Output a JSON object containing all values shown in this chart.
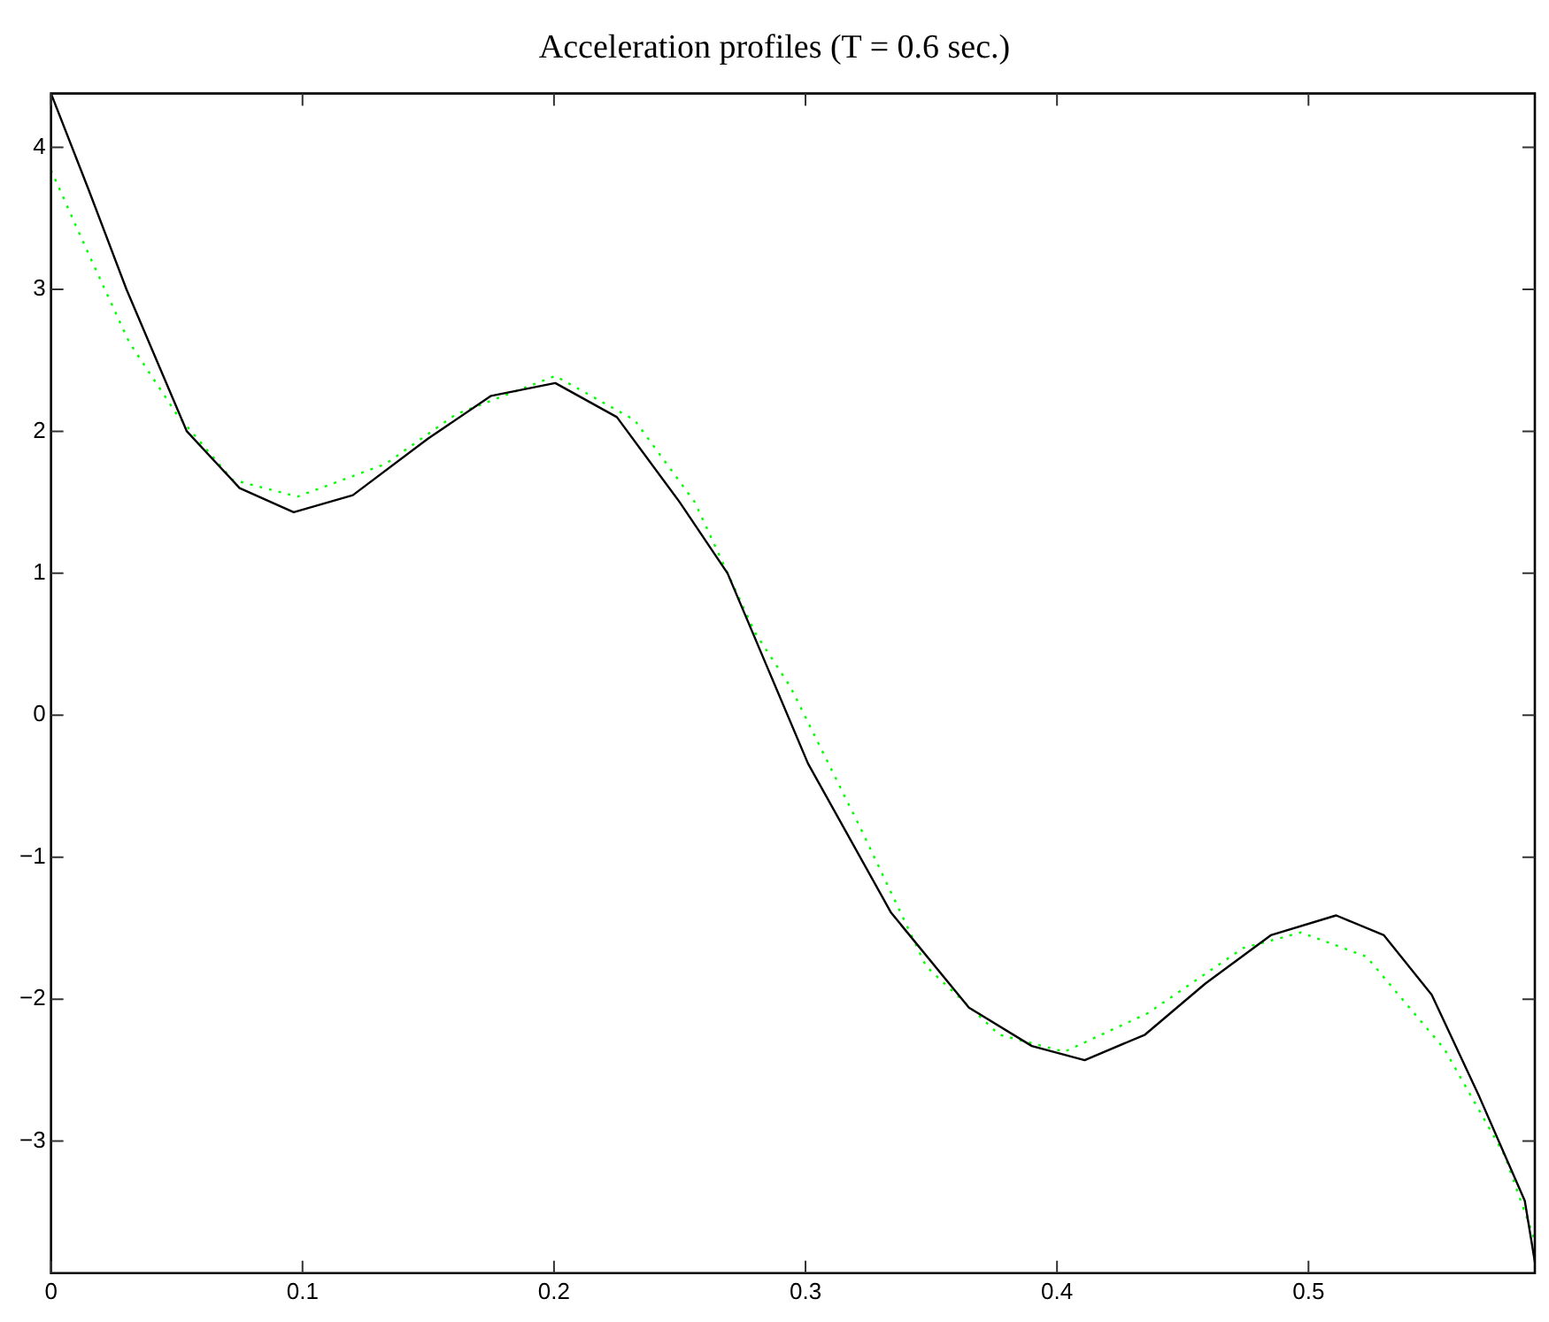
{
  "chart_data": {
    "type": "line",
    "title": "Acceleration profiles (T = 0.6 sec.)",
    "xlim": [
      0,
      0.59
    ],
    "ylim": [
      -3.93,
      4.38
    ],
    "xticks": [
      0,
      0.1,
      0.2,
      0.3,
      0.4,
      0.5
    ],
    "yticks": [
      -3,
      -2,
      -1,
      0,
      1,
      2,
      3,
      4
    ],
    "series": [
      {
        "color": "#000000",
        "line_style": "solid",
        "x": [
          0,
          0.015,
          0.03,
          0.054,
          0.075,
          0.0965,
          0.12,
          0.15,
          0.175,
          0.2005,
          0.225,
          0.25,
          0.269,
          0.285,
          0.301,
          0.334,
          0.365,
          0.39,
          0.411,
          0.435,
          0.459,
          0.485,
          0.511,
          0.53,
          0.549,
          0.568,
          0.586,
          0.59
        ],
        "values": [
          4.38,
          3.7,
          3.0,
          2.0,
          1.6,
          1.43,
          1.55,
          1.95,
          2.25,
          2.34,
          2.1,
          1.5,
          1.0,
          0.33,
          -0.34,
          -1.39,
          -2.06,
          -2.33,
          -2.43,
          -2.25,
          -1.89,
          -1.55,
          -1.41,
          -1.55,
          -1.97,
          -2.69,
          -3.42,
          -3.85
        ]
      },
      {
        "color": "#00ff00",
        "line_style": "dotted",
        "x": [
          0,
          0.0149,
          0.031,
          0.05,
          0.072,
          0.098,
          0.133,
          0.161,
          0.2005,
          0.232,
          0.256,
          0.28,
          0.294,
          0.322,
          0.348,
          0.377,
          0.403,
          0.436,
          0.474,
          0.497,
          0.523,
          0.554,
          0.578,
          0.59
        ],
        "values": [
          3.84,
          3.25,
          2.63,
          2.12,
          1.66,
          1.54,
          1.77,
          2.12,
          2.39,
          2.08,
          1.5,
          0.58,
          0.2,
          -0.8,
          -1.77,
          -2.25,
          -2.37,
          -2.1,
          -1.64,
          -1.53,
          -1.7,
          -2.35,
          -3.1,
          -3.7
        ]
      }
    ]
  }
}
